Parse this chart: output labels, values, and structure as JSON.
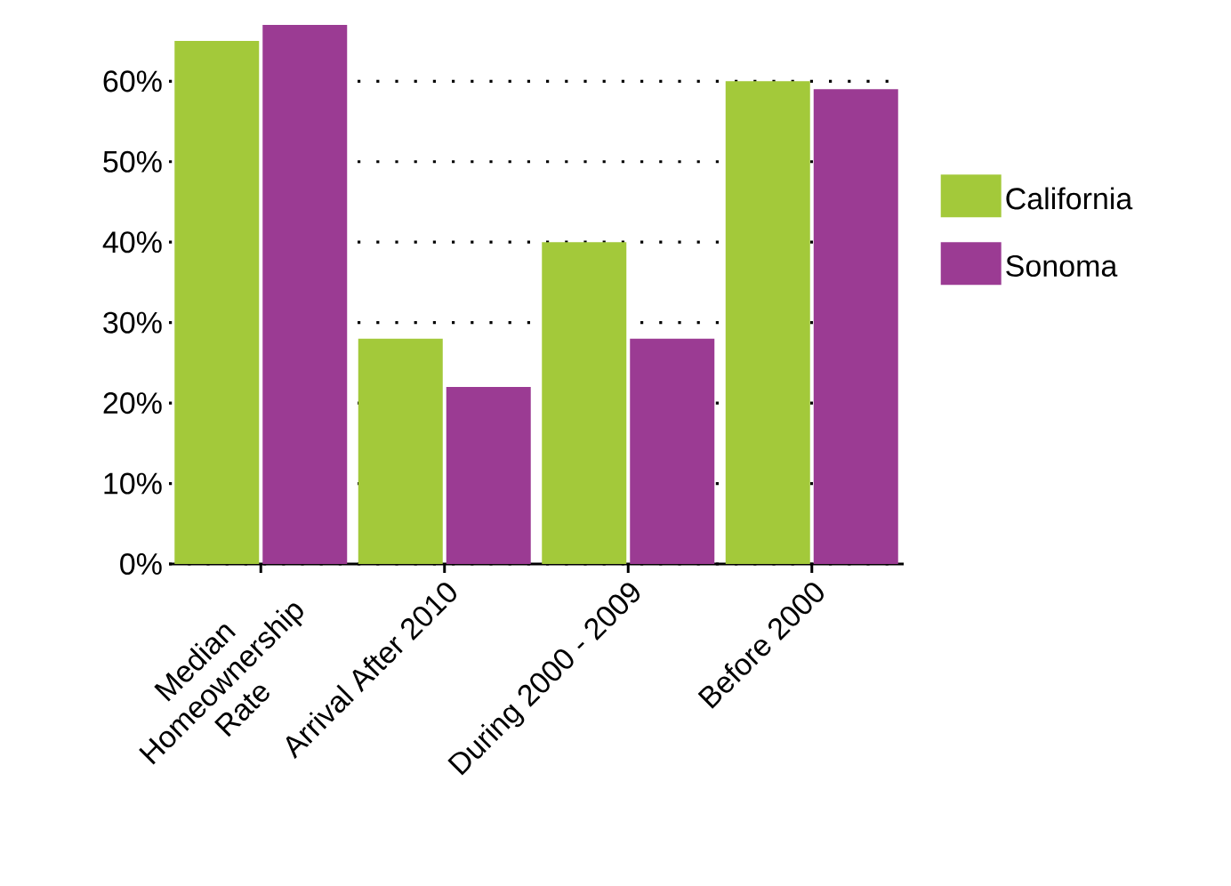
{
  "chart_data": {
    "type": "bar",
    "categories": [
      "Median Homeownership Rate",
      "Arrival After 2010",
      "During 2000 - 2009",
      "Before 2000"
    ],
    "series": [
      {
        "name": "California",
        "color": "#a3c93a",
        "values": [
          65,
          28,
          40,
          60
        ]
      },
      {
        "name": "Sonoma",
        "color": "#9b3b93",
        "values": [
          67,
          22,
          28,
          59
        ]
      }
    ],
    "ylim": [
      0,
      67
    ],
    "yticks": [
      {
        "value": 0,
        "label": "0%"
      },
      {
        "value": 10,
        "label": "10%"
      },
      {
        "value": 20,
        "label": "20%"
      },
      {
        "value": 30,
        "label": "30%"
      },
      {
        "value": 40,
        "label": "40%"
      },
      {
        "value": 50,
        "label": "50%"
      },
      {
        "value": 60,
        "label": "60%"
      }
    ],
    "grid": "y",
    "legend": "right"
  }
}
